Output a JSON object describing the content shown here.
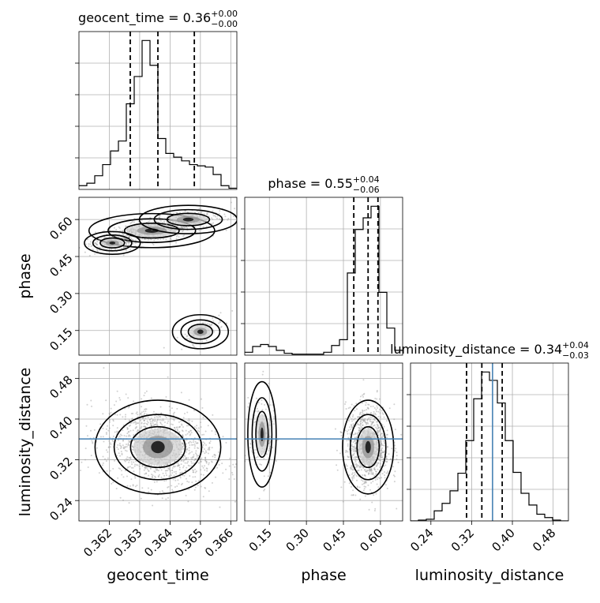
{
  "chart_data": {
    "type": "corner",
    "parameters": [
      "geocent_time",
      "phase",
      "luminosity_distance"
    ],
    "titles": [
      {
        "param": "geocent_time",
        "median": "0.36",
        "plus": "+0.00",
        "minus": "−0.00"
      },
      {
        "param": "phase",
        "median": "0.55",
        "plus": "+0.04",
        "minus": "−0.06"
      },
      {
        "param": "luminosity_distance",
        "median": "0.34",
        "plus": "+0.04",
        "minus": "−0.03"
      }
    ],
    "axis_labels": {
      "x": [
        "geocent_time",
        "phase",
        "luminosity_distance"
      ],
      "y": [
        "phase",
        "luminosity_distance"
      ]
    },
    "ranges": {
      "geocent_time": [
        0.361,
        0.3662
      ],
      "phase": [
        0.05,
        0.69
      ],
      "luminosity_distance": [
        0.2,
        0.51
      ]
    },
    "ticks": {
      "geocent_time": [
        "0.362",
        "0.363",
        "0.364",
        "0.365",
        "0.366"
      ],
      "phase": [
        "0.15",
        "0.30",
        "0.45",
        "0.60"
      ],
      "luminosity_distance": [
        "0.24",
        "0.32",
        "0.40",
        "0.48"
      ]
    },
    "tick_values": {
      "geocent_time": [
        0.362,
        0.363,
        0.364,
        0.365,
        0.366
      ],
      "phase": [
        0.15,
        0.3,
        0.45,
        0.6
      ],
      "luminosity_distance": [
        0.24,
        0.32,
        0.4,
        0.48
      ]
    },
    "histograms": {
      "geocent_time": {
        "edges": [
          0.361,
          0.36126,
          0.36152,
          0.36178,
          0.36204,
          0.3623,
          0.36256,
          0.36282,
          0.36308,
          0.36334,
          0.3636,
          0.36386,
          0.36412,
          0.36438,
          0.36464,
          0.3649,
          0.36516,
          0.36542,
          0.36568,
          0.36594,
          0.3662
        ],
        "counts": [
          3,
          5,
          11,
          20,
          31,
          39,
          69,
          91,
          120,
          100,
          41,
          29,
          26,
          23,
          20,
          19,
          18,
          12,
          3,
          1
        ]
      },
      "phase": {
        "edges": [
          0.05,
          0.082,
          0.114,
          0.146,
          0.178,
          0.21,
          0.242,
          0.274,
          0.306,
          0.338,
          0.37,
          0.402,
          0.434,
          0.466,
          0.498,
          0.53,
          0.562,
          0.594,
          0.626,
          0.658,
          0.69
        ],
        "counts": [
          3,
          9,
          11,
          9,
          5,
          2,
          1,
          1,
          1,
          1,
          3,
          10,
          16,
          85,
          130,
          142,
          154,
          65,
          28,
          5
        ]
      },
      "luminosity_distance": {
        "edges": [
          0.2,
          0.2155,
          0.231,
          0.2465,
          0.262,
          0.2775,
          0.293,
          0.3085,
          0.324,
          0.3395,
          0.355,
          0.3705,
          0.386,
          0.4015,
          0.417,
          0.4325,
          0.448,
          0.4635,
          0.479,
          0.4945,
          0.51
        ],
        "counts": [
          0,
          1,
          2,
          12,
          21,
          36,
          57,
          96,
          146,
          178,
          168,
          141,
          96,
          58,
          33,
          19,
          8,
          4,
          1,
          0
        ]
      }
    },
    "quantiles": {
      "geocent_time": [
        0.36269,
        0.3636,
        0.3648
      ],
      "phase": [
        0.492,
        0.55,
        0.59
      ],
      "luminosity_distance": [
        0.31,
        0.34,
        0.38
      ]
    },
    "truths": {
      "luminosity_distance": 0.361
    },
    "contour_pairs": [
      {
        "x": "geocent_time",
        "y": "phase"
      },
      {
        "x": "geocent_time",
        "y": "luminosity_distance"
      },
      {
        "x": "phase",
        "y": "luminosity_distance"
      }
    ],
    "grid": true,
    "colors": {
      "contour": "#000000",
      "truth": "#4682b4",
      "points": "#9a9a9a",
      "grid": "#b0b0b0"
    }
  }
}
